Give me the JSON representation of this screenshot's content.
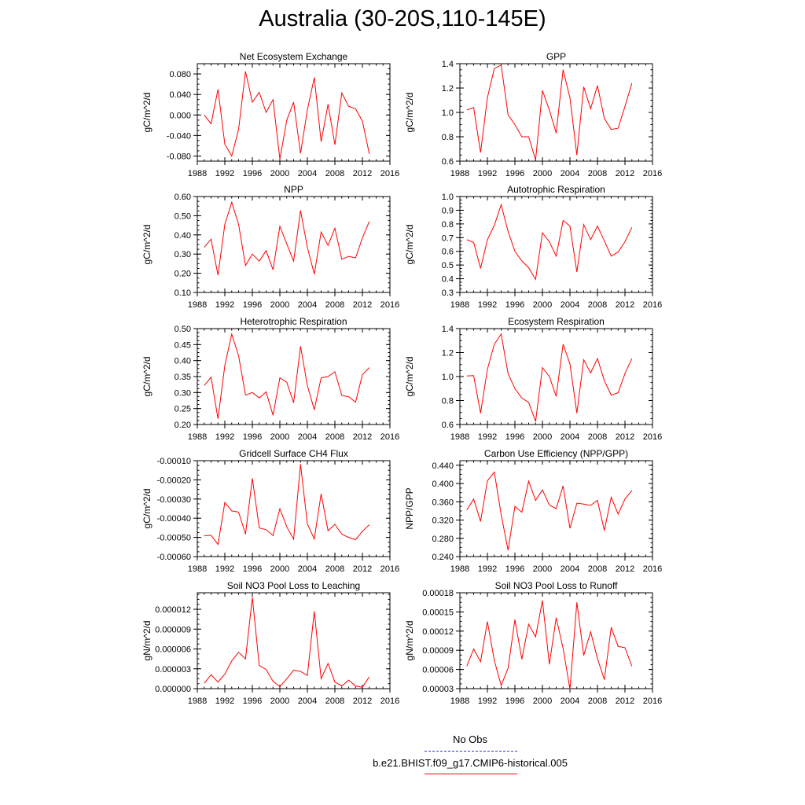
{
  "page": {
    "title": "Australia (30-20S,110-145E)"
  },
  "legend": {
    "items": [
      {
        "label": "No Obs",
        "color": "#3333cc",
        "style": "dashed"
      },
      {
        "label": "b.e21.BHIST.f09_g17.CMIP6-historical.005",
        "color": "#ff0000",
        "style": "solid"
      }
    ]
  },
  "chart_data": [
    {
      "type": "line",
      "title": "Net Ecosystem Exchange",
      "ylabel": "gC/m^2/d",
      "xlim": [
        1988,
        2016
      ],
      "ylim": [
        -0.09,
        0.1
      ],
      "xticks": [
        1988,
        1992,
        1996,
        2000,
        2004,
        2008,
        2012,
        2016
      ],
      "yticks": [
        -0.08,
        -0.04,
        0.0,
        0.04,
        0.08
      ],
      "ytick_labels": [
        "-0.080",
        "-0.040",
        "0.000",
        "0.040",
        "0.080"
      ],
      "x": [
        1989,
        1990,
        1991,
        1992,
        1993,
        1994,
        1995,
        1996,
        1997,
        1998,
        1999,
        2000,
        2001,
        2002,
        2003,
        2004,
        2005,
        2006,
        2007,
        2008,
        2009,
        2010,
        2011,
        2012,
        2013
      ],
      "series": [
        {
          "color": "#ff0000",
          "values": [
            0.0,
            -0.017,
            0.05,
            -0.057,
            -0.08,
            -0.028,
            0.085,
            0.025,
            0.044,
            0.005,
            0.03,
            -0.086,
            -0.01,
            0.025,
            -0.075,
            0.01,
            0.073,
            -0.052,
            0.021,
            -0.058,
            0.043,
            0.017,
            0.012,
            -0.012,
            -0.076
          ]
        }
      ]
    },
    {
      "type": "line",
      "title": "GPP",
      "ylabel": "gC/m^2/d",
      "xlim": [
        1988,
        2016
      ],
      "ylim": [
        0.6,
        1.4
      ],
      "xticks": [
        1988,
        1992,
        1996,
        2000,
        2004,
        2008,
        2012,
        2016
      ],
      "yticks": [
        0.6,
        0.8,
        1.0,
        1.2,
        1.4
      ],
      "ytick_labels": [
        "0.6",
        "0.8",
        "1.0",
        "1.2",
        "1.4"
      ],
      "x": [
        1989,
        1990,
        1991,
        1992,
        1993,
        1994,
        1995,
        1996,
        1997,
        1998,
        1999,
        2000,
        2001,
        2002,
        2003,
        2004,
        2005,
        2006,
        2007,
        2008,
        2009,
        2010,
        2011,
        2012,
        2013
      ],
      "series": [
        {
          "color": "#ff0000",
          "values": [
            1.02,
            1.04,
            0.67,
            1.12,
            1.36,
            1.39,
            0.98,
            0.9,
            0.8,
            0.8,
            0.61,
            1.18,
            1.02,
            0.83,
            1.35,
            1.12,
            0.65,
            1.21,
            1.03,
            1.22,
            0.95,
            0.86,
            0.87,
            1.05,
            1.24
          ]
        }
      ]
    },
    {
      "type": "line",
      "title": "NPP",
      "ylabel": "gC/m^2/d",
      "xlim": [
        1988,
        2016
      ],
      "ylim": [
        0.1,
        0.6
      ],
      "xticks": [
        1988,
        1992,
        1996,
        2000,
        2004,
        2008,
        2012,
        2016
      ],
      "yticks": [
        0.1,
        0.2,
        0.3,
        0.4,
        0.5,
        0.6
      ],
      "ytick_labels": [
        "0.10",
        "0.20",
        "0.30",
        "0.40",
        "0.50",
        "0.60"
      ],
      "x": [
        1989,
        1990,
        1991,
        1992,
        1993,
        1994,
        1995,
        1996,
        1997,
        1998,
        1999,
        2000,
        2001,
        2002,
        2003,
        2004,
        2005,
        2006,
        2007,
        2008,
        2009,
        2010,
        2011,
        2012,
        2013
      ],
      "series": [
        {
          "color": "#ff0000",
          "values": [
            0.335,
            0.378,
            0.19,
            0.455,
            0.57,
            0.455,
            0.24,
            0.3,
            0.263,
            0.318,
            0.218,
            0.445,
            0.353,
            0.263,
            0.527,
            0.335,
            0.195,
            0.415,
            0.345,
            0.435,
            0.273,
            0.288,
            0.28,
            0.385,
            0.47
          ]
        }
      ]
    },
    {
      "type": "line",
      "title": "Autotrophic Respiration",
      "ylabel": "gC/m^2/d",
      "xlim": [
        1988,
        2016
      ],
      "ylim": [
        0.3,
        1.0
      ],
      "xticks": [
        1988,
        1992,
        1996,
        2000,
        2004,
        2008,
        2012,
        2016
      ],
      "yticks": [
        0.3,
        0.4,
        0.5,
        0.6,
        0.7,
        0.8,
        0.9,
        1.0
      ],
      "ytick_labels": [
        "0.3",
        "0.4",
        "0.5",
        "0.6",
        "0.7",
        "0.8",
        "0.9",
        "1.0"
      ],
      "x": [
        1989,
        1990,
        1991,
        1992,
        1993,
        1994,
        1995,
        1996,
        1997,
        1998,
        1999,
        2000,
        2001,
        2002,
        2003,
        2004,
        2005,
        2006,
        2007,
        2008,
        2009,
        2010,
        2011,
        2012,
        2013
      ],
      "series": [
        {
          "color": "#ff0000",
          "values": [
            0.685,
            0.665,
            0.475,
            0.685,
            0.79,
            0.94,
            0.745,
            0.6,
            0.53,
            0.48,
            0.395,
            0.735,
            0.67,
            0.565,
            0.825,
            0.785,
            0.45,
            0.795,
            0.685,
            0.785,
            0.675,
            0.565,
            0.595,
            0.67,
            0.775
          ]
        }
      ]
    },
    {
      "type": "line",
      "title": "Heterotrophic Respiration",
      "ylabel": "gC/m^2/d",
      "xlim": [
        1988,
        2016
      ],
      "ylim": [
        0.2,
        0.5
      ],
      "xticks": [
        1988,
        1992,
        1996,
        2000,
        2004,
        2008,
        2012,
        2016
      ],
      "yticks": [
        0.2,
        0.25,
        0.3,
        0.35,
        0.4,
        0.45,
        0.5
      ],
      "ytick_labels": [
        "0.20",
        "0.25",
        "0.30",
        "0.35",
        "0.40",
        "0.45",
        "0.50"
      ],
      "x": [
        1989,
        1990,
        1991,
        1992,
        1993,
        1994,
        1995,
        1996,
        1997,
        1998,
        1999,
        2000,
        2001,
        2002,
        2003,
        2004,
        2005,
        2006,
        2007,
        2008,
        2009,
        2010,
        2011,
        2012,
        2013
      ],
      "series": [
        {
          "color": "#ff0000",
          "values": [
            0.322,
            0.348,
            0.218,
            0.385,
            0.483,
            0.415,
            0.292,
            0.3,
            0.283,
            0.302,
            0.229,
            0.346,
            0.332,
            0.268,
            0.445,
            0.322,
            0.246,
            0.346,
            0.35,
            0.365,
            0.291,
            0.287,
            0.27,
            0.356,
            0.378
          ]
        }
      ]
    },
    {
      "type": "line",
      "title": "Ecosystem Respiration",
      "ylabel": "gC/m^2/d",
      "xlim": [
        1988,
        2016
      ],
      "ylim": [
        0.6,
        1.4
      ],
      "xticks": [
        1988,
        1992,
        1996,
        2000,
        2004,
        2008,
        2012,
        2016
      ],
      "yticks": [
        0.6,
        0.8,
        1.0,
        1.2,
        1.4
      ],
      "ytick_labels": [
        "0.6",
        "0.8",
        "1.0",
        "1.2",
        "1.4"
      ],
      "x": [
        1989,
        1990,
        1991,
        1992,
        1993,
        1994,
        1995,
        1996,
        1997,
        1998,
        1999,
        2000,
        2001,
        2002,
        2003,
        2004,
        2005,
        2006,
        2007,
        2008,
        2009,
        2010,
        2011,
        2012,
        2013
      ],
      "series": [
        {
          "color": "#ff0000",
          "values": [
            1.005,
            1.008,
            0.695,
            1.06,
            1.27,
            1.355,
            1.025,
            0.9,
            0.82,
            0.785,
            0.625,
            1.075,
            1.0,
            0.835,
            1.27,
            1.105,
            0.695,
            1.14,
            1.03,
            1.15,
            0.965,
            0.845,
            0.865,
            1.025,
            1.15
          ]
        }
      ]
    },
    {
      "type": "line",
      "title": "Gridcell Surface CH4 Flux",
      "ylabel": "gC/m^2/d",
      "xlim": [
        1988,
        2016
      ],
      "ylim": [
        -0.0006,
        -0.0001
      ],
      "xticks": [
        1988,
        1992,
        1996,
        2000,
        2004,
        2008,
        2012,
        2016
      ],
      "yticks": [
        -0.0006,
        -0.0005,
        -0.0004,
        -0.0003,
        -0.0002,
        -0.0001
      ],
      "ytick_labels": [
        "-0.00060",
        "-0.00050",
        "-0.00040",
        "-0.00030",
        "-0.00020",
        "-0.00010"
      ],
      "x": [
        1989,
        1990,
        1991,
        1992,
        1993,
        1994,
        1995,
        1996,
        1997,
        1998,
        1999,
        2000,
        2001,
        2002,
        2003,
        2004,
        2005,
        2006,
        2007,
        2008,
        2009,
        2010,
        2011,
        2012,
        2013
      ],
      "series": [
        {
          "color": "#ff0000",
          "values": [
            -0.000492,
            -0.000489,
            -0.000537,
            -0.000318,
            -0.000362,
            -0.000368,
            -0.000483,
            -0.000192,
            -0.000451,
            -0.00046,
            -0.00049,
            -0.00035,
            -0.000445,
            -0.00051,
            -0.000118,
            -0.00043,
            -0.000508,
            -0.000273,
            -0.000465,
            -0.000432,
            -0.000483,
            -0.0005,
            -0.000512,
            -0.000468,
            -0.000434
          ]
        }
      ]
    },
    {
      "type": "line",
      "title": "Carbon Use Efficiency (NPP/GPP)",
      "ylabel": "NPP/GPP",
      "xlim": [
        1988,
        2016
      ],
      "ylim": [
        0.24,
        0.45
      ],
      "xticks": [
        1988,
        1992,
        1996,
        2000,
        2004,
        2008,
        2012,
        2016
      ],
      "yticks": [
        0.24,
        0.28,
        0.32,
        0.36,
        0.4,
        0.44
      ],
      "ytick_labels": [
        "0.240",
        "0.280",
        "0.320",
        "0.360",
        "0.400",
        "0.440"
      ],
      "x": [
        1989,
        1990,
        1991,
        1992,
        1993,
        1994,
        1995,
        1996,
        1997,
        1998,
        1999,
        2000,
        2001,
        2002,
        2003,
        2004,
        2005,
        2006,
        2007,
        2008,
        2009,
        2010,
        2011,
        2012,
        2013
      ],
      "series": [
        {
          "color": "#ff0000",
          "values": [
            0.342,
            0.366,
            0.317,
            0.406,
            0.425,
            0.332,
            0.254,
            0.35,
            0.337,
            0.405,
            0.363,
            0.386,
            0.353,
            0.345,
            0.395,
            0.302,
            0.357,
            0.355,
            0.352,
            0.363,
            0.297,
            0.37,
            0.333,
            0.366,
            0.385
          ]
        }
      ]
    },
    {
      "type": "line",
      "title": "Soil NO3 Pool Loss to Leaching",
      "ylabel": "gN/m^2/d",
      "xlim": [
        1988,
        2016
      ],
      "ylim": [
        0.0,
        1.45e-05
      ],
      "xticks": [
        1988,
        1992,
        1996,
        2000,
        2004,
        2008,
        2012,
        2016
      ],
      "yticks": [
        0.0,
        3e-06,
        6e-06,
        9e-06,
        1.2e-05
      ],
      "ytick_labels": [
        "0.000000",
        "0.000003",
        "0.000006",
        "0.000009",
        "0.000012"
      ],
      "x": [
        1989,
        1990,
        1991,
        1992,
        1993,
        1994,
        1995,
        1996,
        1997,
        1998,
        1999,
        2000,
        2001,
        2002,
        2003,
        2004,
        2005,
        2006,
        2007,
        2008,
        2009,
        2010,
        2011,
        2012,
        2013
      ],
      "series": [
        {
          "color": "#ff0000",
          "values": [
            8e-07,
            2.1e-06,
            1e-06,
            2.2e-06,
            4.2e-06,
            5.5e-06,
            4.5e-06,
            1.38e-05,
            3.5e-06,
            2.9e-06,
            1.1e-06,
            3e-07,
            1.5e-06,
            2.8e-06,
            2.6e-06,
            2e-06,
            1.17e-05,
            1.5e-06,
            3.8e-06,
            1e-06,
            4e-07,
            1.3e-06,
            4e-07,
            2e-07,
            1.8e-06
          ]
        }
      ]
    },
    {
      "type": "line",
      "title": "Soil NO3 Pool Loss to Runoff",
      "ylabel": "gN/m^2/d",
      "xlim": [
        1988,
        2016
      ],
      "ylim": [
        3e-05,
        0.00018
      ],
      "xticks": [
        1988,
        1992,
        1996,
        2000,
        2004,
        2008,
        2012,
        2016
      ],
      "yticks": [
        3e-05,
        6e-05,
        9e-05,
        0.00012,
        0.00015,
        0.00018
      ],
      "ytick_labels": [
        "0.00003",
        "0.00006",
        "0.00009",
        "0.00012",
        "0.00015",
        "0.00018"
      ],
      "x": [
        1989,
        1990,
        1991,
        1992,
        1993,
        1994,
        1995,
        1996,
        1997,
        1998,
        1999,
        2000,
        2001,
        2002,
        2003,
        2004,
        2005,
        2006,
        2007,
        2008,
        2009,
        2010,
        2011,
        2012,
        2013
      ],
      "series": [
        {
          "color": "#ff0000",
          "values": [
            6.5e-05,
            9.2e-05,
            7.2e-05,
            0.000135,
            7.4e-05,
            3.5e-05,
            6.2e-05,
            0.000138,
            7.6e-05,
            0.000131,
            0.000111,
            0.000168,
            6.8e-05,
            0.000141,
            9.3e-05,
            2.9e-05,
            0.000165,
            8.2e-05,
            0.000119,
            7.7e-05,
            4.4e-05,
            0.000126,
            9.6e-05,
            9.4e-05,
            6.5e-05
          ]
        }
      ]
    }
  ]
}
